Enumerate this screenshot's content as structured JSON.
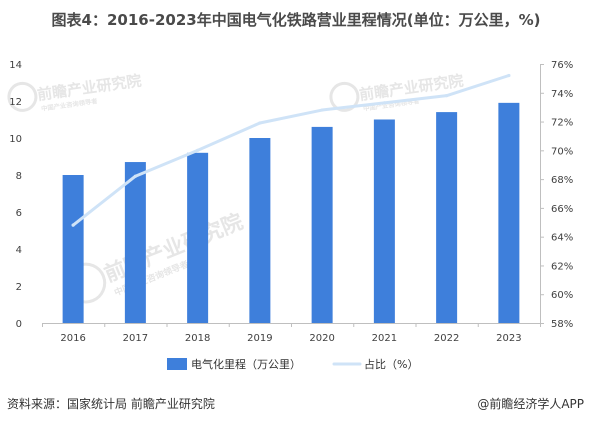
{
  "title": "图表4：2016-2023年中国电气化铁路营业里程情况(单位：万公里，%)",
  "footer": {
    "source": "资料来源：国家统计局 前瞻产业研究院",
    "brand": "@前瞻经济学人APP"
  },
  "watermark": {
    "name": "前瞻产业研究院",
    "tagline": "中国产业咨询领导者"
  },
  "colors": {
    "bar": "#3e7fdb",
    "line": "#cfe3f7",
    "axis": "#bfbfbf",
    "watermark": "#e6e6e6"
  },
  "chart_data": {
    "type": "bar",
    "categories": [
      "2016",
      "2017",
      "2018",
      "2019",
      "2020",
      "2021",
      "2022",
      "2023"
    ],
    "series": [
      {
        "name": "电气化里程（万公里）",
        "type": "bar",
        "axis": "left",
        "values": [
          8.0,
          8.7,
          9.2,
          10.0,
          10.6,
          11.0,
          11.4,
          11.9
        ]
      },
      {
        "name": "占比（%）",
        "type": "line",
        "axis": "right",
        "values": [
          64.8,
          68.2,
          70.0,
          71.9,
          72.8,
          73.3,
          73.8,
          75.2
        ]
      }
    ],
    "y_left": {
      "min": 0,
      "max": 14,
      "step": 2,
      "ticks": [
        "0",
        "2",
        "4",
        "6",
        "8",
        "10",
        "12",
        "14"
      ]
    },
    "y_right": {
      "min": 58,
      "max": 76,
      "step": 2,
      "ticks": [
        "58%",
        "60%",
        "62%",
        "64%",
        "66%",
        "68%",
        "70%",
        "72%",
        "74%",
        "76%"
      ]
    },
    "grid": false,
    "legend_position": "bottom-center"
  }
}
